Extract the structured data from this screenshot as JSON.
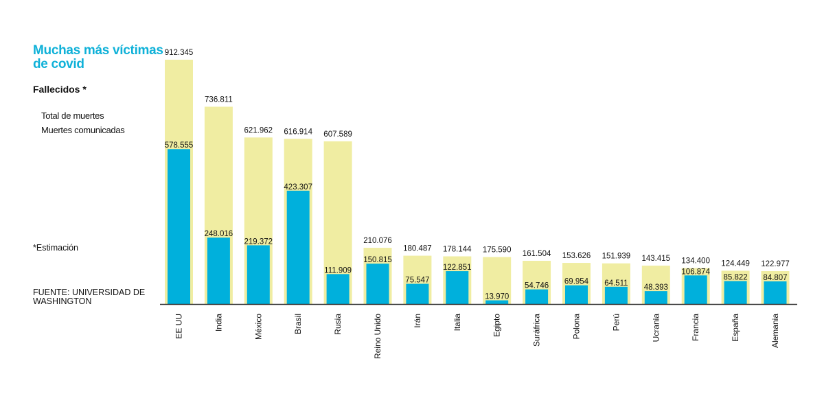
{
  "header": {
    "title": "Muchas más víctimas de covid",
    "subtitle": "Fallecidos *"
  },
  "legend": {
    "total_label": "Total de muertes",
    "reported_label": "Muertes comunicadas"
  },
  "footer": {
    "note": "*Estimación",
    "source": "FUENTE: UNIVERSIDAD DE WASHINGTON"
  },
  "colors": {
    "total": "#f0eda2",
    "reported": "#00b0dc",
    "title": "#0fb1d8",
    "axis": "#333333"
  },
  "chart_data": {
    "type": "bar",
    "title": "Muchas más víctimas de covid",
    "subtitle": "Fallecidos *",
    "categories": [
      "EE UU",
      "India",
      "México",
      "Brasil",
      "Rusia",
      "Reino Unido",
      "Irán",
      "Italia",
      "Egipto",
      "Suráfrica",
      "Polona",
      "Perú",
      "Ucrania",
      "Francia",
      "España",
      "Alemania"
    ],
    "series": [
      {
        "name": "Total de muertes",
        "values": [
          912345,
          736811,
          621962,
          616914,
          607589,
          210076,
          180487,
          178144,
          175590,
          161504,
          153626,
          151939,
          143415,
          134400,
          124449,
          122977
        ],
        "labels": [
          "912.345",
          "736.811",
          "621.962",
          "616.914",
          "607.589",
          "210.076",
          "180.487",
          "178.144",
          "175.590",
          "161.504",
          "153.626",
          "151.939",
          "143.415",
          "134.400",
          "124.449",
          "122.977"
        ]
      },
      {
        "name": "Muertes comunicadas",
        "values": [
          578555,
          248016,
          219372,
          423307,
          111909,
          150815,
          75547,
          122851,
          13970,
          54746,
          69954,
          64511,
          48393,
          106874,
          85822,
          84807
        ],
        "labels": [
          "578.555",
          "248.016",
          "219.372",
          "423.307",
          "111.909",
          "150.815",
          "75.547",
          "122.851",
          "13.970",
          "54.746",
          "69.954",
          "64.511",
          "48.393",
          "106.874",
          "85.822",
          "84.807"
        ]
      }
    ],
    "ylim": [
      0,
      912345
    ],
    "grid": false,
    "legend_position": "left"
  }
}
